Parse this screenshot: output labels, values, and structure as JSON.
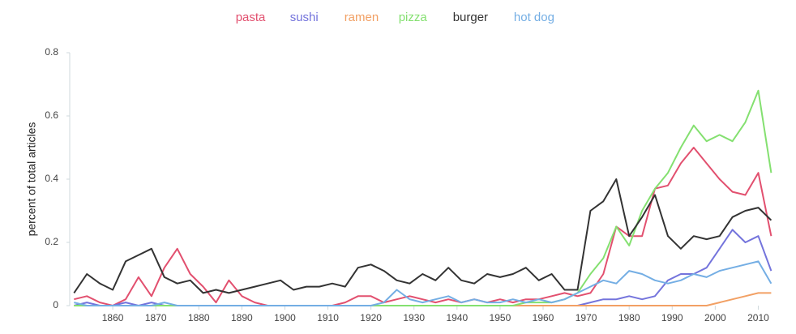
{
  "chart_data": {
    "type": "line",
    "y_label": "percent of total articles",
    "x": [
      1851,
      1854,
      1857,
      1860,
      1863,
      1866,
      1869,
      1872,
      1875,
      1878,
      1881,
      1884,
      1887,
      1890,
      1893,
      1896,
      1899,
      1902,
      1905,
      1908,
      1911,
      1914,
      1917,
      1920,
      1923,
      1926,
      1929,
      1932,
      1935,
      1938,
      1941,
      1944,
      1947,
      1950,
      1953,
      1956,
      1959,
      1962,
      1965,
      1968,
      1971,
      1974,
      1977,
      1980,
      1983,
      1986,
      1989,
      1992,
      1995,
      1998,
      2001,
      2004,
      2007,
      2010,
      2013
    ],
    "xlim": [
      1850,
      2015
    ],
    "xticks": [
      1860,
      1870,
      1880,
      1890,
      1900,
      1910,
      1920,
      1930,
      1940,
      1950,
      1960,
      1970,
      1980,
      1990,
      2000,
      2010
    ],
    "ylim": [
      0,
      0.8
    ],
    "yticks": [
      0,
      0.2,
      0.4,
      0.6,
      0.8
    ],
    "series": [
      {
        "name": "pasta",
        "color": "#e2506f",
        "values": [
          0.02,
          0.03,
          0.01,
          0,
          0.02,
          0.09,
          0.03,
          0.12,
          0.18,
          0.1,
          0.06,
          0.01,
          0.08,
          0.03,
          0.01,
          0,
          0,
          0,
          0,
          0,
          0,
          0.01,
          0.03,
          0.03,
          0.01,
          0.02,
          0.03,
          0.02,
          0.01,
          0.02,
          0.01,
          0.02,
          0.01,
          0.02,
          0.01,
          0.02,
          0.02,
          0.03,
          0.04,
          0.03,
          0.04,
          0.1,
          0.25,
          0.22,
          0.22,
          0.37,
          0.38,
          0.45,
          0.5,
          0.45,
          0.4,
          0.36,
          0.35,
          0.42,
          0.22
        ]
      },
      {
        "name": "sushi",
        "color": "#7474dc",
        "values": [
          0,
          0.01,
          0,
          0,
          0.01,
          0,
          0.01,
          0,
          0,
          0,
          0,
          0,
          0,
          0,
          0,
          0,
          0,
          0,
          0,
          0,
          0,
          0,
          0,
          0,
          0,
          0,
          0,
          0,
          0,
          0,
          0,
          0,
          0,
          0,
          0,
          0,
          0,
          0,
          0,
          0,
          0.01,
          0.02,
          0.02,
          0.03,
          0.02,
          0.03,
          0.08,
          0.1,
          0.1,
          0.12,
          0.18,
          0.24,
          0.2,
          0.22,
          0.11
        ]
      },
      {
        "name": "ramen",
        "color": "#f2a064",
        "values": [
          0,
          0,
          0,
          0,
          0,
          0,
          0,
          0,
          0,
          0,
          0,
          0,
          0,
          0,
          0,
          0,
          0,
          0,
          0,
          0,
          0,
          0,
          0,
          0,
          0,
          0,
          0,
          0,
          0,
          0,
          0,
          0,
          0,
          0,
          0,
          0,
          0,
          0,
          0,
          0,
          0,
          0,
          0,
          0,
          0,
          0,
          0,
          0,
          0,
          0,
          0.01,
          0.02,
          0.03,
          0.04,
          0.04
        ]
      },
      {
        "name": "pizza",
        "color": "#84e070",
        "values": [
          0,
          0,
          0,
          0,
          0,
          0,
          0,
          0,
          0,
          0,
          0,
          0,
          0,
          0,
          0,
          0,
          0,
          0,
          0,
          0,
          0,
          0,
          0,
          0,
          0,
          0,
          0,
          0,
          0,
          0,
          0,
          0,
          0,
          0,
          0,
          0.01,
          0.01,
          0.01,
          0.02,
          0.04,
          0.1,
          0.15,
          0.25,
          0.19,
          0.3,
          0.37,
          0.42,
          0.5,
          0.57,
          0.52,
          0.54,
          0.52,
          0.58,
          0.68,
          0.42
        ]
      },
      {
        "name": "burger",
        "color": "#333333",
        "values": [
          0.04,
          0.1,
          0.07,
          0.05,
          0.14,
          0.16,
          0.18,
          0.09,
          0.07,
          0.08,
          0.04,
          0.05,
          0.04,
          0.05,
          0.06,
          0.07,
          0.08,
          0.05,
          0.06,
          0.06,
          0.07,
          0.06,
          0.12,
          0.13,
          0.11,
          0.08,
          0.07,
          0.1,
          0.08,
          0.12,
          0.08,
          0.07,
          0.1,
          0.09,
          0.1,
          0.12,
          0.08,
          0.1,
          0.05,
          0.05,
          0.3,
          0.33,
          0.4,
          0.22,
          0.28,
          0.35,
          0.22,
          0.18,
          0.22,
          0.21,
          0.22,
          0.28,
          0.3,
          0.31,
          0.27
        ]
      },
      {
        "name": "hot dog",
        "color": "#74aee4",
        "values": [
          0.01,
          0,
          0,
          0,
          0,
          0,
          0,
          0.01,
          0,
          0,
          0,
          0,
          0,
          0,
          0,
          0,
          0,
          0,
          0,
          0,
          0,
          0,
          0,
          0,
          0.01,
          0.05,
          0.02,
          0.01,
          0.02,
          0.03,
          0.01,
          0.02,
          0.01,
          0.01,
          0.02,
          0.01,
          0.02,
          0.01,
          0.02,
          0.04,
          0.06,
          0.08,
          0.07,
          0.11,
          0.1,
          0.08,
          0.07,
          0.08,
          0.1,
          0.09,
          0.11,
          0.12,
          0.13,
          0.14,
          0.07
        ]
      }
    ]
  }
}
